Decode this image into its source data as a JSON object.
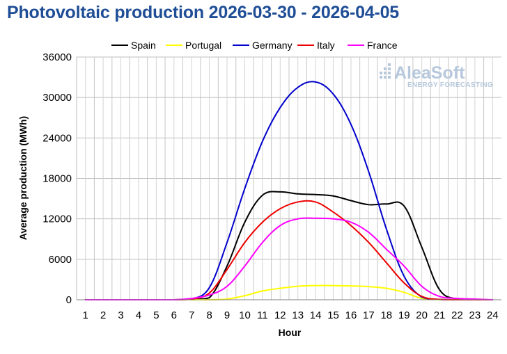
{
  "chart_data": {
    "type": "line",
    "title": "Photovoltaic production 2026-03-30 - 2026-04-05",
    "xlabel": "Hour",
    "ylabel": "Average production (MWh)",
    "x": [
      1,
      2,
      3,
      4,
      5,
      6,
      7,
      8,
      9,
      10,
      11,
      12,
      13,
      14,
      15,
      16,
      17,
      18,
      19,
      20,
      21,
      22,
      23,
      24
    ],
    "x_ticks": [
      "1",
      "2",
      "3",
      "4",
      "5",
      "6",
      "7",
      "8",
      "9",
      "10",
      "11",
      "12",
      "13",
      "14",
      "15",
      "16",
      "17",
      "18",
      "19",
      "20",
      "21",
      "22",
      "23",
      "24"
    ],
    "ylim": [
      0,
      36000
    ],
    "y_ticks": [
      "0",
      "6000",
      "12000",
      "18000",
      "24000",
      "30000",
      "36000"
    ],
    "grid": true,
    "legend_position": "top",
    "watermark": {
      "name": "AleaSoft",
      "tagline": "ENERGY FORECASTING"
    },
    "series": [
      {
        "name": "Spain",
        "color": "#000000",
        "values": [
          0,
          0,
          0,
          0,
          0,
          0,
          50,
          300,
          5000,
          11500,
          15500,
          16000,
          15700,
          15600,
          15400,
          14700,
          14100,
          14200,
          13900,
          7800,
          1500,
          100,
          0,
          0
        ]
      },
      {
        "name": "Portugal",
        "color": "#ffff00",
        "values": [
          0,
          0,
          0,
          0,
          0,
          0,
          0,
          0,
          100,
          600,
          1300,
          1700,
          2000,
          2100,
          2100,
          2050,
          1950,
          1700,
          1100,
          200,
          20,
          0,
          0,
          0
        ]
      },
      {
        "name": "Germany",
        "color": "#0000cc",
        "values": [
          0,
          0,
          0,
          0,
          0,
          0,
          100,
          1800,
          8500,
          16500,
          23500,
          28500,
          31500,
          32300,
          30500,
          26000,
          19000,
          10500,
          3500,
          400,
          50,
          0,
          0,
          0
        ]
      },
      {
        "name": "Italy",
        "color": "#ee0000",
        "values": [
          0,
          0,
          0,
          0,
          0,
          0,
          100,
          1000,
          4500,
          8500,
          11500,
          13500,
          14500,
          14500,
          13000,
          11000,
          8500,
          5500,
          2500,
          500,
          50,
          0,
          0,
          0
        ]
      },
      {
        "name": "France",
        "color": "#ff00ff",
        "values": [
          0,
          0,
          0,
          0,
          0,
          0,
          200,
          700,
          2000,
          5000,
          8500,
          11000,
          12000,
          12100,
          12000,
          11500,
          10000,
          7500,
          5000,
          2000,
          500,
          200,
          100,
          0
        ]
      }
    ]
  }
}
